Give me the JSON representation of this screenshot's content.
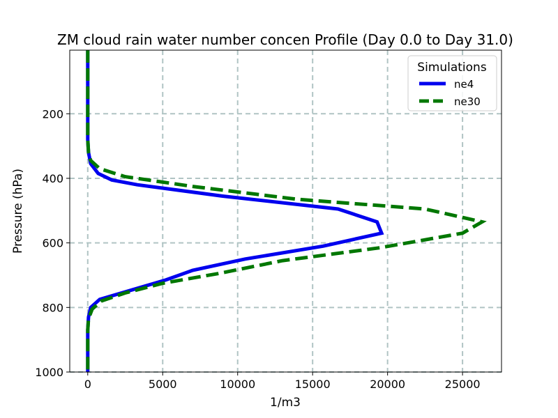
{
  "chart_data": {
    "type": "line",
    "title": "ZM cloud rain water number concen Profile (Day 0.0 to Day 31.0)",
    "xlabel": "1/m3",
    "ylabel": "Pressure (hPa)",
    "xlim": [
      -1200,
      27600
    ],
    "ylim": [
      1000,
      3
    ],
    "y_inverted": true,
    "grid": true,
    "x_ticks": [
      0,
      5000,
      10000,
      15000,
      20000,
      25000
    ],
    "y_ticks": [
      200,
      400,
      600,
      800,
      1000
    ],
    "legend": {
      "title": "Simulations",
      "position": "top-right"
    },
    "series": [
      {
        "name": "ne4",
        "color": "#0000ee",
        "style": "solid",
        "points": [
          [
            0,
            3
          ],
          [
            0,
            100
          ],
          [
            0,
            200
          ],
          [
            0,
            280
          ],
          [
            50,
            320
          ],
          [
            200,
            355
          ],
          [
            700,
            385
          ],
          [
            1600,
            405
          ],
          [
            3300,
            420
          ],
          [
            9000,
            455
          ],
          [
            16700,
            495
          ],
          [
            19300,
            535
          ],
          [
            19600,
            570
          ],
          [
            15700,
            610
          ],
          [
            10500,
            650
          ],
          [
            7000,
            685
          ],
          [
            5200,
            715
          ],
          [
            3000,
            745
          ],
          [
            800,
            775
          ],
          [
            200,
            800
          ],
          [
            50,
            830
          ],
          [
            0,
            870
          ],
          [
            0,
            920
          ],
          [
            0,
            1000
          ]
        ]
      },
      {
        "name": "ne30",
        "color": "#007700",
        "style": "dashed",
        "points": [
          [
            0,
            3
          ],
          [
            0,
            100
          ],
          [
            0,
            200
          ],
          [
            0,
            280
          ],
          [
            50,
            320
          ],
          [
            200,
            345
          ],
          [
            800,
            370
          ],
          [
            2500,
            395
          ],
          [
            7000,
            425
          ],
          [
            14000,
            465
          ],
          [
            22500,
            495
          ],
          [
            26300,
            535
          ],
          [
            25000,
            570
          ],
          [
            19500,
            615
          ],
          [
            13000,
            655
          ],
          [
            8700,
            695
          ],
          [
            5000,
            725
          ],
          [
            2500,
            755
          ],
          [
            900,
            780
          ],
          [
            300,
            805
          ],
          [
            50,
            835
          ],
          [
            0,
            870
          ],
          [
            0,
            920
          ],
          [
            0,
            1000
          ]
        ]
      }
    ]
  }
}
